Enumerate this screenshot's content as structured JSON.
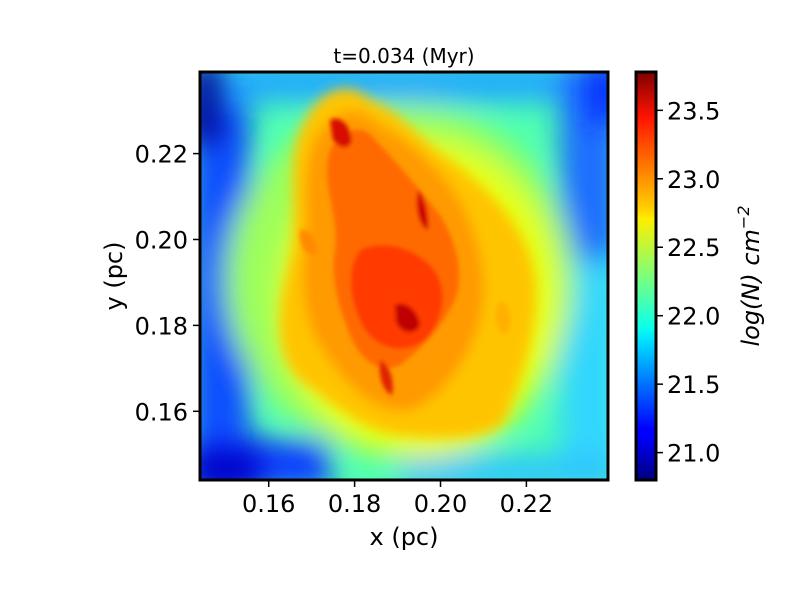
{
  "chart_data": {
    "type": "heatmap",
    "title": "t=0.034 (Myr)",
    "xlabel": "x (pc)",
    "ylabel": "y (pc)",
    "xlim": [
      0.144,
      0.239
    ],
    "ylim": [
      0.144,
      0.239
    ],
    "xticks": [
      0.16,
      0.18,
      0.2,
      0.22
    ],
    "xtick_labels": [
      "0.16",
      "0.18",
      "0.20",
      "0.22"
    ],
    "yticks": [
      0.16,
      0.18,
      0.2,
      0.22
    ],
    "ytick_labels": [
      "0.16",
      "0.18",
      "0.20",
      "0.22"
    ],
    "colorbar": {
      "label": "log(N) cm",
      "label_exponent": "−2",
      "vmin": 20.8,
      "vmax": 23.78,
      "ticks": [
        21.0,
        21.5,
        22.0,
        22.5,
        23.0,
        23.5
      ],
      "tick_labels": [
        "21.0",
        "21.5",
        "22.0",
        "22.5",
        "23.0",
        "23.5"
      ],
      "colormap": "jet"
    },
    "field_description": {
      "background_level": 21.9,
      "cloud_peak_level": 23.7,
      "low_corner_level": 20.9
    },
    "grid": false,
    "legend": "none"
  }
}
